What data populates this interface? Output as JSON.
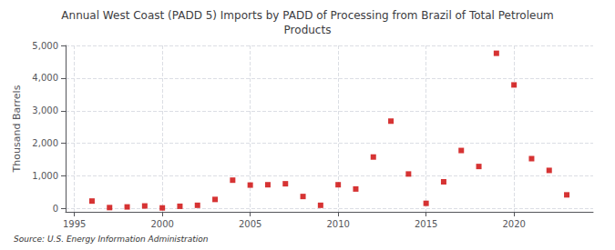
{
  "chart_data": {
    "type": "scatter",
    "title": "Annual West Coast (PADD 5) Imports by PADD of Processing from Brazil of Total Petroleum\nProducts",
    "ylabel": "Thousand Barrels",
    "source": "Source: U.S. Energy Information Administration",
    "x": [
      1996,
      1997,
      1998,
      1999,
      2000,
      2001,
      2002,
      2003,
      2004,
      2005,
      2006,
      2007,
      2008,
      2009,
      2010,
      2011,
      2012,
      2013,
      2014,
      2015,
      2016,
      2017,
      2018,
      2019,
      2020,
      2021,
      2022,
      2023
    ],
    "values": [
      230,
      30,
      50,
      80,
      20,
      70,
      100,
      280,
      870,
      720,
      730,
      760,
      370,
      100,
      730,
      600,
      1580,
      2680,
      1060,
      160,
      820,
      1780,
      1290,
      4760,
      3790,
      1530,
      1170,
      420
    ],
    "color": "#cc0000",
    "marker": "square",
    "xlim": [
      1994.5,
      2024.5
    ],
    "xticks": [
      1995,
      2000,
      2005,
      2010,
      2015,
      2020
    ],
    "ylim": [
      -100,
      5000
    ],
    "yticks": [
      0,
      {
        "value": 1000,
        "label": "1,000"
      },
      {
        "value": 2000,
        "label": "2,000"
      },
      {
        "value": 3000,
        "label": "3,000"
      },
      {
        "value": 4000,
        "label": "4,000"
      },
      {
        "value": 5000,
        "label": "5,000"
      }
    ],
    "grid": true
  }
}
